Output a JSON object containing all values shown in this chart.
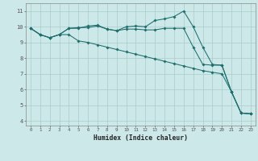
{
  "xlabel": "Humidex (Indice chaleur)",
  "bg_color": "#cce8e8",
  "grid_color": "#aacccc",
  "line_color": "#1e6e6e",
  "x_values": [
    0,
    1,
    2,
    3,
    4,
    5,
    6,
    7,
    8,
    9,
    10,
    11,
    12,
    13,
    14,
    15,
    16,
    17,
    18,
    19,
    20,
    21,
    22,
    23
  ],
  "line1_y": [
    9.9,
    9.5,
    9.3,
    9.5,
    9.5,
    9.1,
    9.0,
    8.85,
    8.7,
    8.55,
    8.4,
    8.25,
    8.1,
    7.95,
    7.8,
    7.65,
    7.5,
    7.35,
    7.2,
    7.1,
    7.0,
    5.85,
    4.5,
    4.45
  ],
  "line2_y": [
    9.9,
    9.5,
    9.3,
    9.5,
    9.9,
    9.9,
    10.05,
    10.1,
    9.85,
    9.75,
    10.0,
    10.05,
    10.0,
    10.4,
    10.5,
    10.65,
    11.0,
    10.0,
    8.7,
    7.6,
    7.55,
    5.85,
    4.5,
    4.45
  ],
  "line3_y": [
    9.9,
    9.5,
    9.3,
    9.5,
    9.9,
    9.95,
    9.95,
    10.05,
    9.85,
    9.75,
    9.85,
    9.85,
    9.8,
    9.8,
    9.9,
    9.9,
    9.9,
    8.7,
    7.6,
    7.55,
    7.55,
    5.85,
    4.5,
    4.45
  ],
  "ylim": [
    3.7,
    11.5
  ],
  "yticks": [
    4,
    5,
    6,
    7,
    8,
    9,
    10,
    11
  ],
  "xlim": [
    -0.5,
    23.5
  ]
}
